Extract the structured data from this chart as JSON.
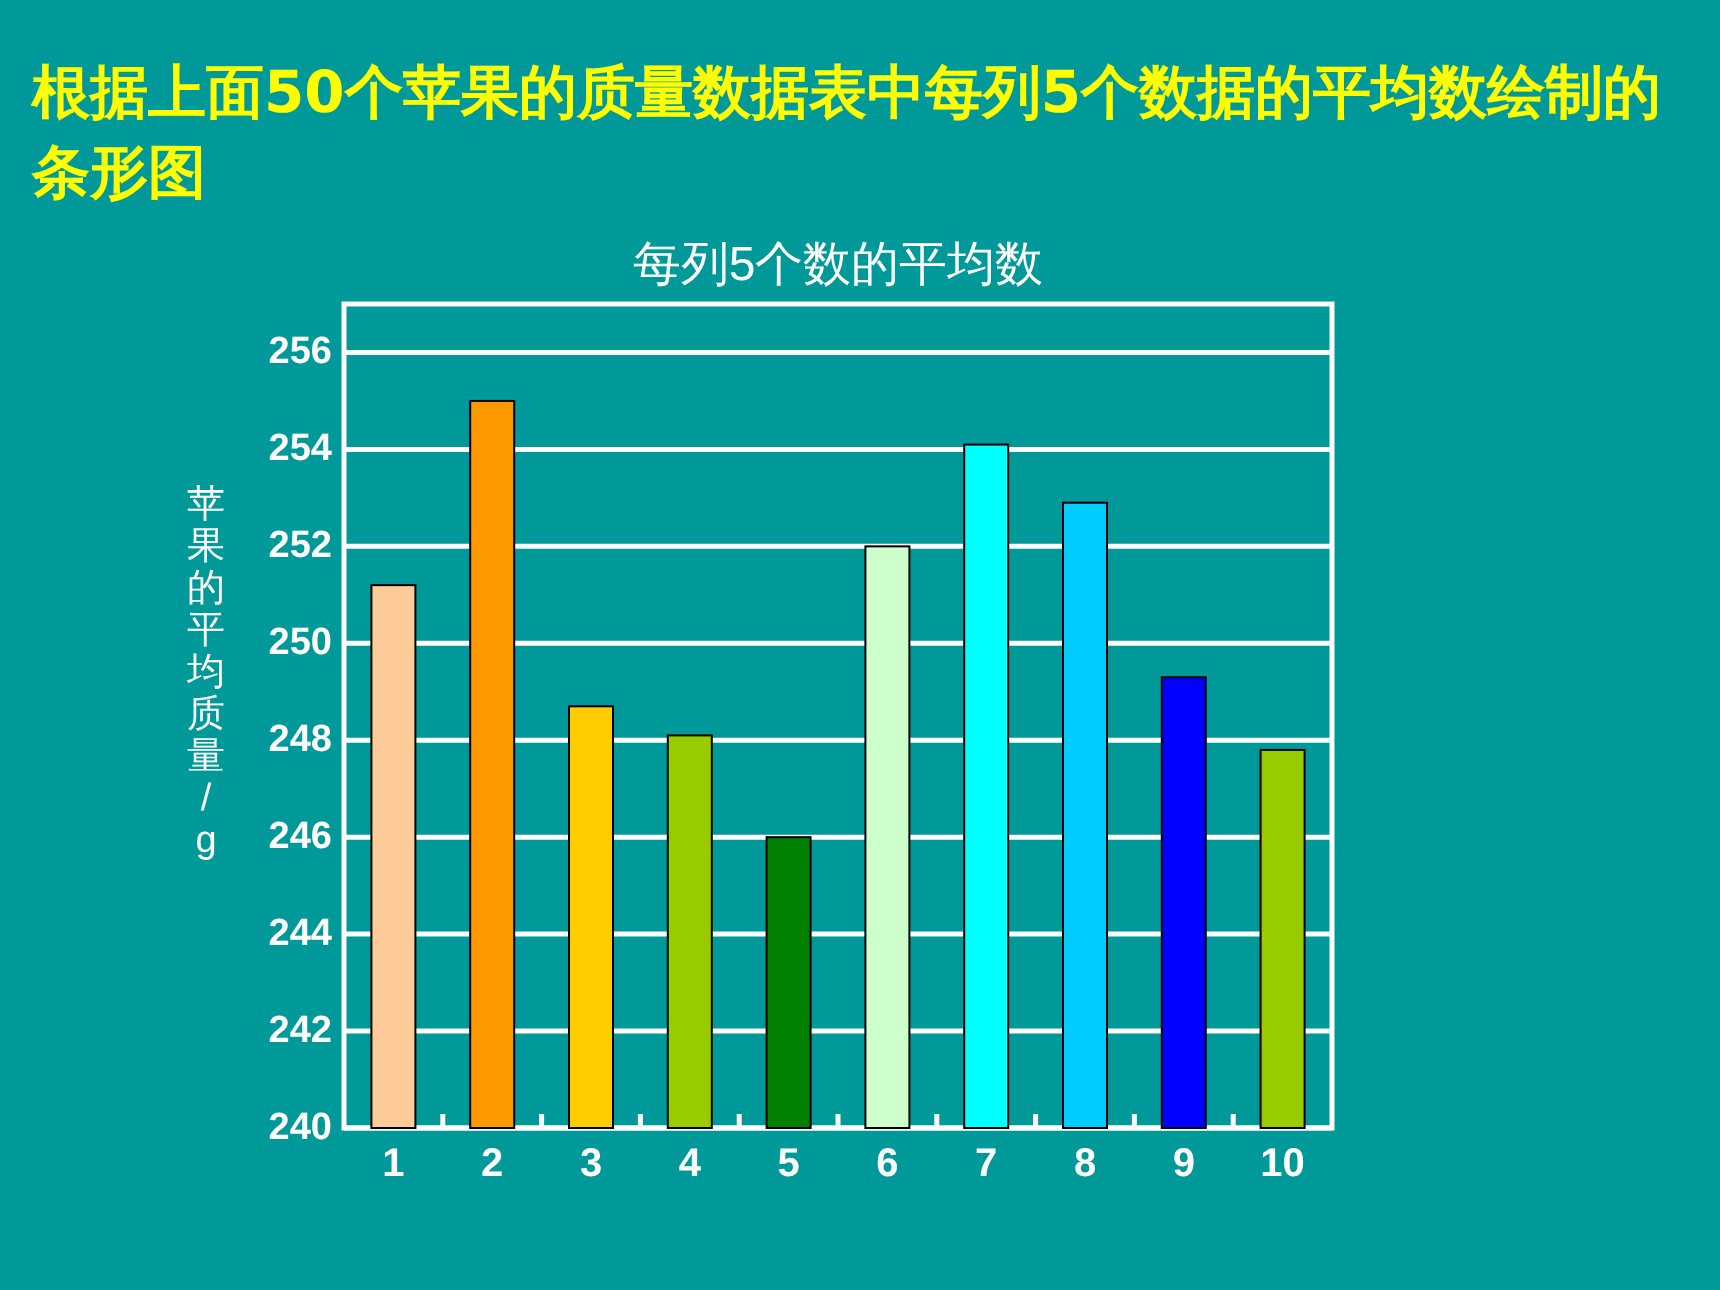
{
  "chart_data": {
    "type": "bar",
    "title": "根据上面50个苹果的质量数据表中每列5个数据的平均数绘制的条形图",
    "subtitle": "每列5个数的平均数",
    "ylabel": "苹果的平均质量/g",
    "categories": [
      "1",
      "2",
      "3",
      "4",
      "5",
      "6",
      "7",
      "8",
      "9",
      "10"
    ],
    "values": [
      251.2,
      255.0,
      248.7,
      248.1,
      246.0,
      252.0,
      254.1,
      252.9,
      249.3,
      247.8
    ],
    "colors": [
      "#ffcc99",
      "#ff9900",
      "#ffcc00",
      "#99cc00",
      "#008000",
      "#ccffcc",
      "#00ffff",
      "#00ccff",
      "#0000ff",
      "#99cc00"
    ],
    "ylim": [
      240,
      257
    ],
    "yticks": [
      240,
      242,
      244,
      246,
      248,
      250,
      252,
      254,
      256
    ],
    "grid": "y"
  }
}
